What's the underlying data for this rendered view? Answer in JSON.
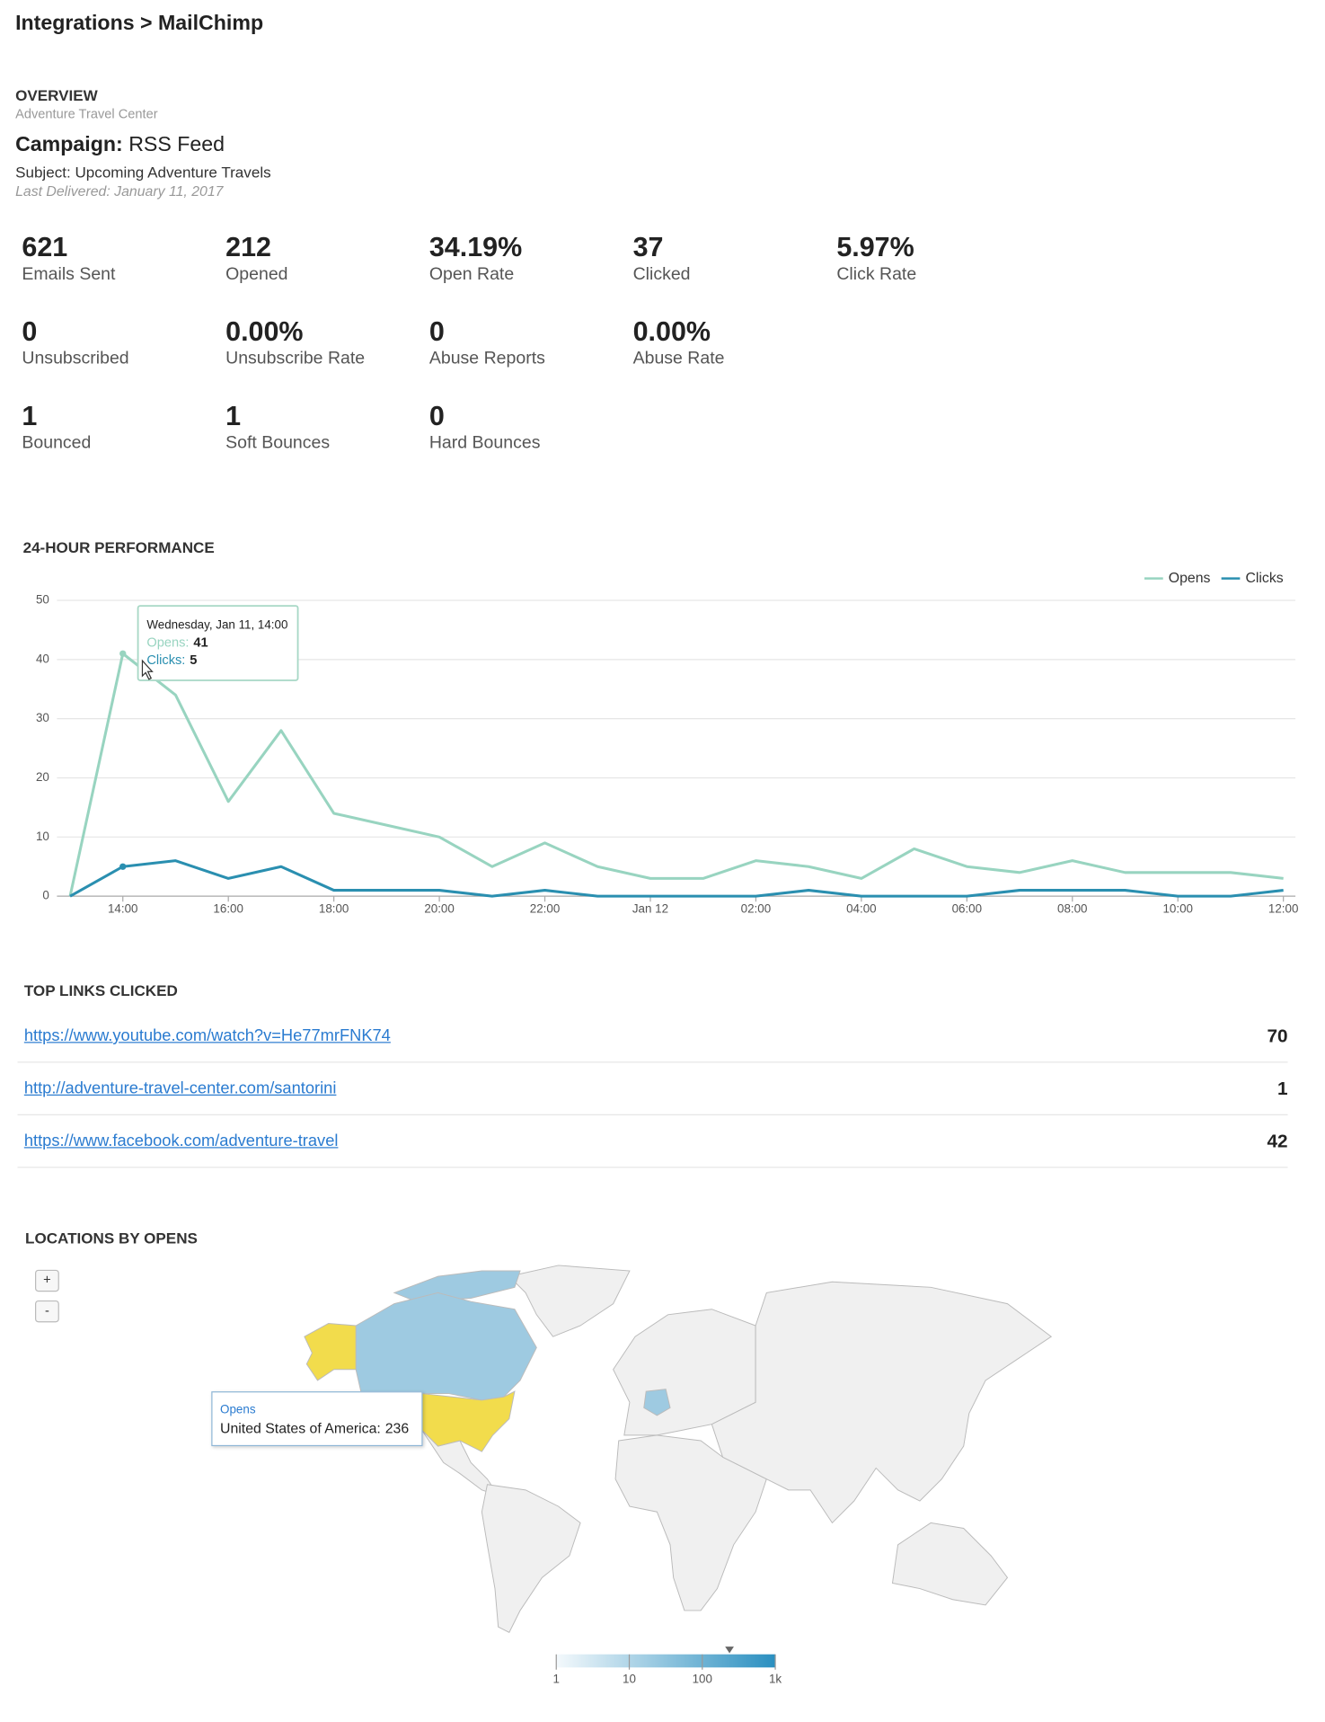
{
  "header": {
    "title": "Integrations > MailChimp"
  },
  "overview": {
    "heading": "OVERVIEW",
    "account": "Adventure Travel Center",
    "campaign_label": "Campaign:",
    "campaign": "RSS Feed",
    "subject": "Subject: Upcoming Adventure Travels",
    "last_delivered": "Last Delivered: January 11, 2017"
  },
  "stats": [
    [
      {
        "value": 621,
        "label": "Emails Sent"
      },
      {
        "value": 212,
        "label": "Opened"
      },
      {
        "value": "34.19%",
        "label": "Open Rate"
      },
      {
        "value": 37,
        "label": "Clicked"
      },
      {
        "value": "5.97%",
        "label": "Click Rate"
      }
    ],
    [
      {
        "value": 0,
        "label": "Unsubscribed"
      },
      {
        "value": "0.00%",
        "label": "Unsubscribe Rate"
      },
      {
        "value": 0,
        "label": "Abuse Reports"
      },
      {
        "value": "0.00%",
        "label": "Abuse Rate"
      }
    ],
    [
      {
        "value": 1,
        "label": "Bounced"
      },
      {
        "value": 1,
        "label": "Soft Bounces"
      },
      {
        "value": 0,
        "label": "Hard Bounces"
      }
    ]
  ],
  "chart_data": {
    "type": "line",
    "title": "24-HOUR PERFORMANCE",
    "categories": [
      null,
      "14:00",
      null,
      "16:00",
      null,
      "18:00",
      null,
      "20:00",
      null,
      "22:00",
      null,
      "Jan 12",
      null,
      "02:00",
      null,
      "04:00",
      null,
      "06:00",
      null,
      "08:00",
      null,
      "10:00",
      null,
      "12:00"
    ],
    "series": [
      {
        "name": "Opens",
        "color": "#98d4c0",
        "values": [
          0,
          41,
          34,
          16,
          28,
          14,
          12,
          10,
          5,
          9,
          5,
          3,
          3,
          6,
          5,
          3,
          8,
          5,
          4,
          6,
          4,
          4,
          4,
          3
        ]
      },
      {
        "name": "Clicks",
        "color": "#2a8fb0",
        "values": [
          0,
          5,
          6,
          3,
          5,
          1,
          1,
          1,
          0,
          1,
          0,
          0,
          0,
          0,
          1,
          0,
          0,
          0,
          1,
          1,
          1,
          0,
          0,
          1
        ]
      }
    ],
    "ylim": [
      0,
      50
    ],
    "yticks": [
      0,
      10,
      20,
      30,
      40,
      50
    ],
    "grid": true,
    "legend": "top-right",
    "tooltip": {
      "title": "Wednesday, Jan 11, 14:00",
      "items": [
        {
          "label": "Opens:",
          "value": 41
        },
        {
          "label": "Clicks:",
          "value": 5
        }
      ]
    }
  },
  "top_links": {
    "title": "TOP LINKS CLICKED",
    "rows": [
      {
        "url": "https://www.youtube.com/watch?v=He77mrFNK74",
        "count": 70
      },
      {
        "url": "http://adventure-travel-center.com/santorini",
        "count": 1
      },
      {
        "url": "https://www.facebook.com/adventure-travel",
        "count": 42
      }
    ]
  },
  "map": {
    "title": "LOCATIONS BY OPENS",
    "zoom": [
      "+",
      "-"
    ],
    "tooltip": {
      "series": "Opens",
      "label": "United States of America:",
      "value": 236
    },
    "colorbar": {
      "range": [
        1,
        1000
      ],
      "ticks": [
        1,
        10,
        100,
        {
          "value": 1000,
          "label": "1k"
        }
      ]
    }
  }
}
